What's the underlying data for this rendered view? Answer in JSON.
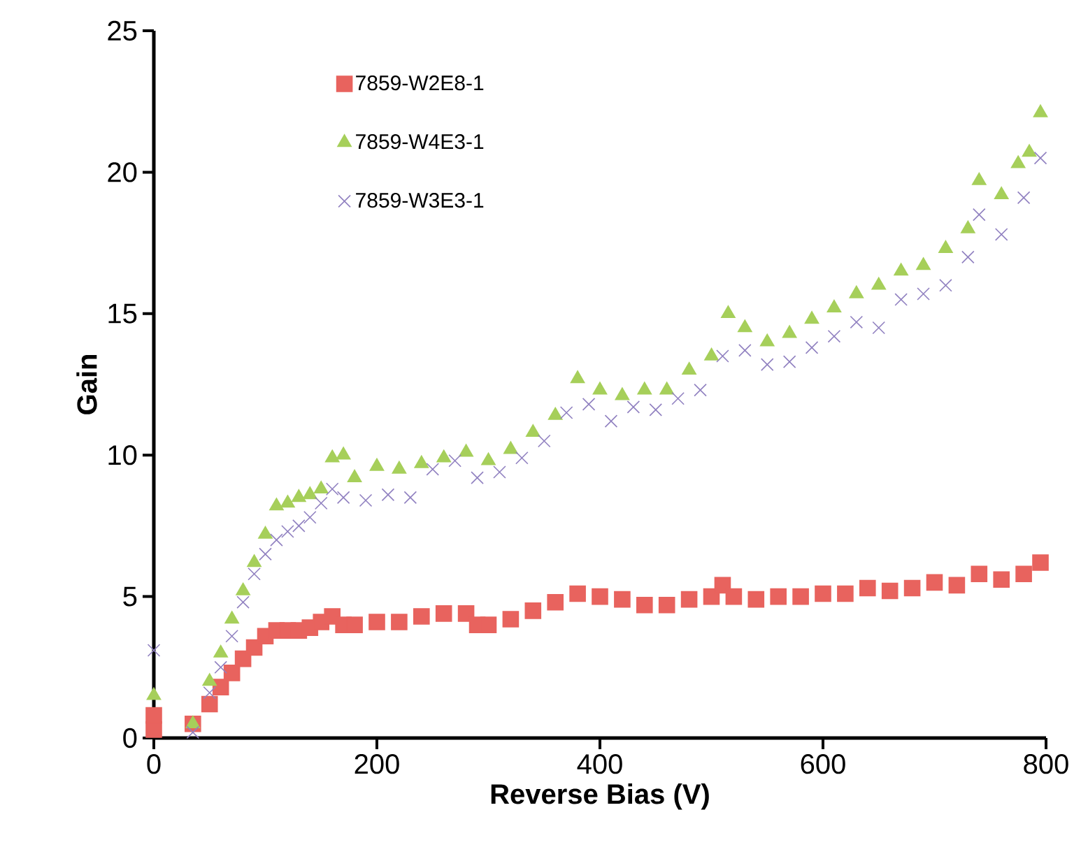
{
  "chart_data": {
    "type": "scatter",
    "xlabel": "Reverse Bias (V)",
    "ylabel": "Gain",
    "xlim": [
      0,
      800
    ],
    "ylim": [
      0,
      25
    ],
    "xticks": [
      0,
      200,
      400,
      600,
      800
    ],
    "yticks": [
      0,
      5,
      10,
      15,
      20,
      25
    ],
    "grid": false,
    "legend": "top left",
    "series": [
      {
        "name": "7859-W2E8-1",
        "color": "#e8635e",
        "marker": "square",
        "x": [
          0,
          0,
          35,
          50,
          60,
          70,
          80,
          90,
          100,
          110,
          120,
          130,
          140,
          150,
          160,
          170,
          180,
          200,
          220,
          240,
          260,
          280,
          290,
          300,
          320,
          340,
          360,
          380,
          400,
          420,
          440,
          460,
          480,
          500,
          510,
          520,
          540,
          560,
          580,
          600,
          620,
          640,
          660,
          680,
          700,
          720,
          740,
          760,
          780,
          795
        ],
        "values": [
          0.3,
          0.8,
          0.5,
          1.2,
          1.8,
          2.3,
          2.8,
          3.2,
          3.6,
          3.8,
          3.8,
          3.8,
          3.9,
          4.1,
          4.3,
          4.0,
          4.0,
          4.1,
          4.1,
          4.3,
          4.4,
          4.4,
          4.0,
          4.0,
          4.2,
          4.5,
          4.8,
          5.1,
          5.0,
          4.9,
          4.7,
          4.7,
          4.9,
          5.0,
          5.4,
          5.0,
          4.9,
          5.0,
          5.0,
          5.1,
          5.1,
          5.3,
          5.2,
          5.3,
          5.5,
          5.4,
          5.8,
          5.6,
          5.8,
          6.2
        ]
      },
      {
        "name": "7859-W4E3-1",
        "color": "#a6cf5a",
        "marker": "triangle",
        "x": [
          0,
          35,
          50,
          60,
          70,
          80,
          90,
          100,
          110,
          120,
          130,
          140,
          150,
          160,
          170,
          180,
          200,
          220,
          240,
          260,
          280,
          300,
          320,
          340,
          360,
          380,
          400,
          420,
          440,
          460,
          480,
          500,
          515,
          530,
          550,
          570,
          590,
          610,
          630,
          650,
          670,
          690,
          710,
          730,
          740,
          760,
          775,
          785,
          795
        ],
        "values": [
          1.5,
          0.5,
          2.0,
          3.0,
          4.2,
          5.2,
          6.2,
          7.2,
          8.2,
          8.3,
          8.5,
          8.6,
          8.8,
          9.9,
          10.0,
          9.2,
          9.6,
          9.5,
          9.7,
          9.9,
          10.1,
          9.8,
          10.2,
          10.8,
          11.4,
          12.7,
          12.3,
          12.1,
          12.3,
          12.3,
          13.0,
          13.5,
          15.0,
          14.5,
          14.0,
          14.3,
          14.8,
          15.2,
          15.7,
          16.0,
          16.5,
          16.7,
          17.3,
          18.0,
          19.7,
          19.2,
          20.3,
          20.7,
          22.1
        ]
      },
      {
        "name": "7859-W3E3-1",
        "color": "#9080c0",
        "marker": "cross",
        "x": [
          0,
          35,
          50,
          60,
          70,
          80,
          90,
          100,
          110,
          120,
          130,
          140,
          150,
          160,
          170,
          190,
          210,
          230,
          250,
          270,
          290,
          310,
          330,
          350,
          370,
          390,
          410,
          430,
          450,
          470,
          490,
          510,
          530,
          550,
          570,
          590,
          610,
          630,
          650,
          670,
          690,
          710,
          730,
          740,
          760,
          780,
          795
        ],
        "values": [
          3.1,
          0.2,
          1.6,
          2.5,
          3.6,
          4.8,
          5.8,
          6.5,
          7.0,
          7.3,
          7.5,
          7.8,
          8.3,
          8.8,
          8.5,
          8.4,
          8.6,
          8.5,
          9.5,
          9.8,
          9.2,
          9.4,
          9.9,
          10.5,
          11.5,
          11.8,
          11.2,
          11.7,
          11.6,
          12.0,
          12.3,
          13.5,
          13.7,
          13.2,
          13.3,
          13.8,
          14.2,
          14.7,
          14.5,
          15.5,
          15.7,
          16.0,
          17.0,
          18.5,
          17.8,
          19.1,
          20.5
        ]
      }
    ]
  }
}
